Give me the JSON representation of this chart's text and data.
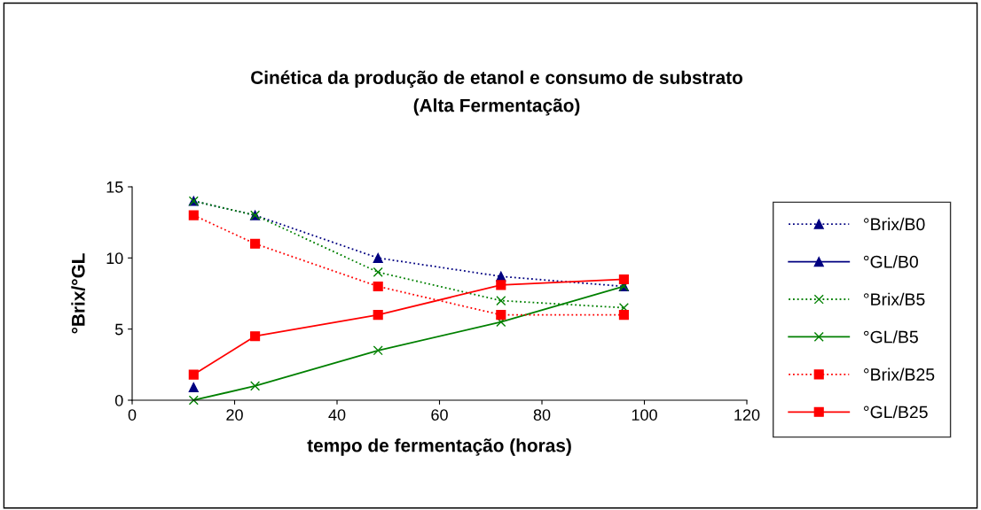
{
  "chart_data": {
    "type": "line",
    "title": "Cinética da produção de etanol e consumo de substrato\n(Alta Fermentação)",
    "xlabel": "tempo de fermentação (horas)",
    "ylabel": "°Brix/°GL",
    "x": [
      12,
      24,
      48,
      72,
      96
    ],
    "series": [
      {
        "name": "°Brix/B0",
        "color": "#000080",
        "marker": "triangle",
        "line_style": "dotted",
        "values": [
          14,
          13,
          10,
          8.7,
          8
        ]
      },
      {
        "name": "°GL/B0",
        "color": "#000080",
        "marker": "triangle",
        "line_style": "solid",
        "values": [
          0.9,
          null,
          null,
          null,
          null
        ]
      },
      {
        "name": "°Brix/B5",
        "color": "#008000",
        "marker": "cross",
        "line_style": "dotted",
        "values": [
          14,
          13,
          9,
          7,
          6.5
        ]
      },
      {
        "name": "°GL/B5",
        "color": "#008000",
        "marker": "cross",
        "line_style": "solid",
        "values": [
          0,
          1,
          3.5,
          5.5,
          8
        ]
      },
      {
        "name": "°Brix/B25",
        "color": "#ff0000",
        "marker": "square",
        "line_style": "dotted",
        "values": [
          13,
          11,
          8,
          6,
          6
        ]
      },
      {
        "name": "°GL/B25",
        "color": "#ff0000",
        "marker": "square",
        "line_style": "solid",
        "values": [
          1.8,
          4.5,
          6,
          8.1,
          8.5
        ]
      }
    ],
    "xlim": [
      0,
      120
    ],
    "xticks": [
      0,
      20,
      40,
      60,
      80,
      100,
      120
    ],
    "ylim": [
      0,
      15
    ],
    "yticks": [
      0,
      5,
      10,
      15
    ],
    "grid": false,
    "legend": "right"
  }
}
